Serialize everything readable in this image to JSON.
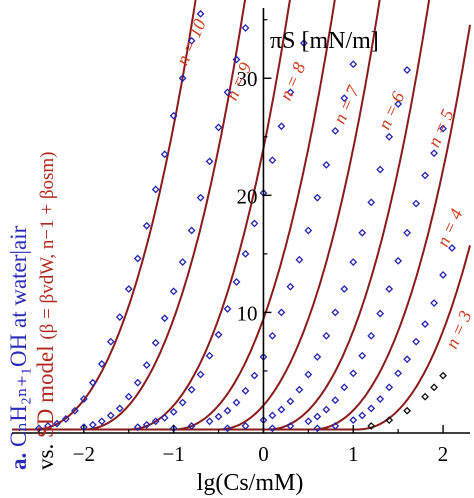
{
  "chart_data": {
    "type": "scatter",
    "panel_letter": "a.",
    "title_line1": "CₙH₂ₙ₊₁OH at water|air",
    "title_line2_prefix": "vs.",
    "title_line2_model": "SD model",
    "title_line2_formula": "(β = βvdW, n−1 + βosm)",
    "xlabel": "lg(Cs/mM)",
    "ylabel": "πS [mN/m]",
    "xlim": [
      -2.8,
      2.3
    ],
    "ylim": [
      -0.3,
      36
    ],
    "xticks": [
      -2,
      -1,
      0,
      1,
      2
    ],
    "xtick_labels": [
      "−2",
      "−1",
      "0",
      "1",
      "2"
    ],
    "yticks": [
      10,
      20,
      30
    ],
    "ytick_labels": [
      "10",
      "20",
      "30"
    ],
    "colors": {
      "model": "#8b1a1a",
      "data": "#2424b0",
      "data_n3": "#111111",
      "labels": "#cc3b1c"
    },
    "series": [
      {
        "name": "n = 10",
        "label": "n = 10",
        "x0": -2.55,
        "k": 7.0,
        "points": [
          [
            -2.5,
            0.1
          ],
          [
            -2.4,
            0.3
          ],
          [
            -2.3,
            0.5
          ],
          [
            -2.2,
            0.9
          ],
          [
            -2.1,
            1.6
          ],
          [
            -2.0,
            2.6
          ],
          [
            -1.9,
            4.0
          ],
          [
            -1.8,
            5.6
          ],
          [
            -1.7,
            7.5
          ],
          [
            -1.6,
            9.6
          ],
          [
            -1.5,
            12.0
          ],
          [
            -1.4,
            14.6
          ],
          [
            -1.3,
            17.4
          ],
          [
            -1.2,
            20.5
          ],
          [
            -1.1,
            23.5
          ],
          [
            -1.0,
            26.8
          ],
          [
            -0.9,
            30.0
          ],
          [
            -0.8,
            33.2
          ],
          [
            -0.7,
            35.5
          ]
        ]
      },
      {
        "name": "n = 9",
        "label": "n = 9",
        "x0": -2.0,
        "k": 7.0,
        "points": [
          [
            -2.0,
            0.2
          ],
          [
            -1.9,
            0.4
          ],
          [
            -1.8,
            0.7
          ],
          [
            -1.7,
            1.2
          ],
          [
            -1.6,
            1.8
          ],
          [
            -1.5,
            2.8
          ],
          [
            -1.4,
            4.0
          ],
          [
            -1.3,
            5.5
          ],
          [
            -1.2,
            7.4
          ],
          [
            -1.1,
            9.5
          ],
          [
            -1.0,
            11.8
          ],
          [
            -0.9,
            14.3
          ],
          [
            -0.8,
            17.0
          ],
          [
            -0.7,
            19.8
          ],
          [
            -0.6,
            22.9
          ],
          [
            -0.5,
            25.8
          ],
          [
            -0.4,
            28.8
          ],
          [
            -0.3,
            31.6
          ],
          [
            -0.2,
            34.3
          ]
        ]
      },
      {
        "name": "n = 8",
        "label": "n = 8",
        "x0": -1.5,
        "k": 7.0,
        "points": [
          [
            -1.4,
            0.2
          ],
          [
            -1.3,
            0.4
          ],
          [
            -1.2,
            0.7
          ],
          [
            -1.1,
            1.0
          ],
          [
            -1.0,
            1.5
          ],
          [
            -0.9,
            2.3
          ],
          [
            -0.8,
            3.4
          ],
          [
            -0.7,
            4.7
          ],
          [
            -0.6,
            6.3
          ],
          [
            -0.5,
            8.1
          ],
          [
            -0.4,
            10.3
          ],
          [
            -0.3,
            12.6
          ],
          [
            -0.2,
            15.0
          ],
          [
            -0.1,
            17.6
          ],
          [
            0.0,
            20.2
          ],
          [
            0.1,
            23.0
          ],
          [
            0.2,
            25.9
          ],
          [
            0.3,
            28.8
          ],
          [
            0.45,
            33.0
          ]
        ]
      },
      {
        "name": "n = 7",
        "label": "n = 7",
        "x0": -1.0,
        "k": 7.0,
        "points": [
          [
            -1.0,
            0.1
          ],
          [
            -0.8,
            0.3
          ],
          [
            -0.6,
            0.7
          ],
          [
            -0.5,
            1.1
          ],
          [
            -0.4,
            1.6
          ],
          [
            -0.3,
            2.3
          ],
          [
            -0.2,
            3.3
          ],
          [
            -0.1,
            4.6
          ],
          [
            0.0,
            6.2
          ],
          [
            0.1,
            8.0
          ],
          [
            0.2,
            10.0
          ],
          [
            0.3,
            12.2
          ],
          [
            0.4,
            14.5
          ],
          [
            0.5,
            17.0
          ],
          [
            0.6,
            19.8
          ],
          [
            0.7,
            22.6
          ],
          [
            0.8,
            25.5
          ],
          [
            0.9,
            28.3
          ],
          [
            1.0,
            31.2
          ]
        ]
      },
      {
        "name": "n = 6",
        "label": "n = 6",
        "x0": -0.5,
        "k": 7.0,
        "points": [
          [
            -0.4,
            0.1
          ],
          [
            -0.2,
            0.3
          ],
          [
            0.0,
            0.8
          ],
          [
            0.1,
            1.2
          ],
          [
            0.2,
            1.7
          ],
          [
            0.3,
            2.4
          ],
          [
            0.4,
            3.4
          ],
          [
            0.5,
            4.7
          ],
          [
            0.6,
            6.2
          ],
          [
            0.7,
            8.0
          ],
          [
            0.8,
            10.0
          ],
          [
            0.9,
            12.0
          ],
          [
            1.0,
            14.3
          ],
          [
            1.1,
            16.8
          ],
          [
            1.2,
            19.4
          ],
          [
            1.3,
            22.2
          ],
          [
            1.4,
            25.0
          ],
          [
            1.5,
            27.8
          ],
          [
            1.6,
            30.7
          ]
        ]
      },
      {
        "name": "n = 5",
        "label": "n = 5",
        "x0": 0.05,
        "k": 7.0,
        "points": [
          [
            0.1,
            0.1
          ],
          [
            0.3,
            0.3
          ],
          [
            0.5,
            0.7
          ],
          [
            0.6,
            1.1
          ],
          [
            0.7,
            1.7
          ],
          [
            0.8,
            2.5
          ],
          [
            0.9,
            3.6
          ],
          [
            1.0,
            4.8
          ],
          [
            1.1,
            6.3
          ],
          [
            1.2,
            8.0
          ],
          [
            1.3,
            9.9
          ],
          [
            1.4,
            12.0
          ],
          [
            1.5,
            14.4
          ],
          [
            1.6,
            16.8
          ],
          [
            1.7,
            19.3
          ],
          [
            1.8,
            21.7
          ],
          [
            1.9,
            23.6
          ],
          [
            2.0,
            25.7
          ]
        ]
      },
      {
        "name": "n = 4",
        "label": "n = 4",
        "x0": 0.55,
        "k": 7.0,
        "points": [
          [
            0.6,
            0.1
          ],
          [
            0.8,
            0.3
          ],
          [
            1.0,
            0.8
          ],
          [
            1.1,
            1.2
          ],
          [
            1.2,
            1.8
          ],
          [
            1.3,
            2.6
          ],
          [
            1.4,
            3.6
          ],
          [
            1.5,
            4.8
          ],
          [
            1.6,
            6.0
          ],
          [
            1.7,
            7.5
          ],
          [
            1.8,
            9.0
          ],
          [
            1.9,
            10.8
          ],
          [
            2.0,
            13.2
          ],
          [
            2.1,
            15.5
          ]
        ]
      },
      {
        "name": "n = 3",
        "label": "n = 3",
        "x0": 1.05,
        "k": 7.0,
        "points": [
          [
            1.2,
            0.3
          ],
          [
            1.4,
            0.8
          ],
          [
            1.6,
            1.6
          ],
          [
            1.8,
            2.8
          ],
          [
            1.9,
            3.6
          ],
          [
            2.0,
            4.6
          ]
        ]
      }
    ]
  }
}
